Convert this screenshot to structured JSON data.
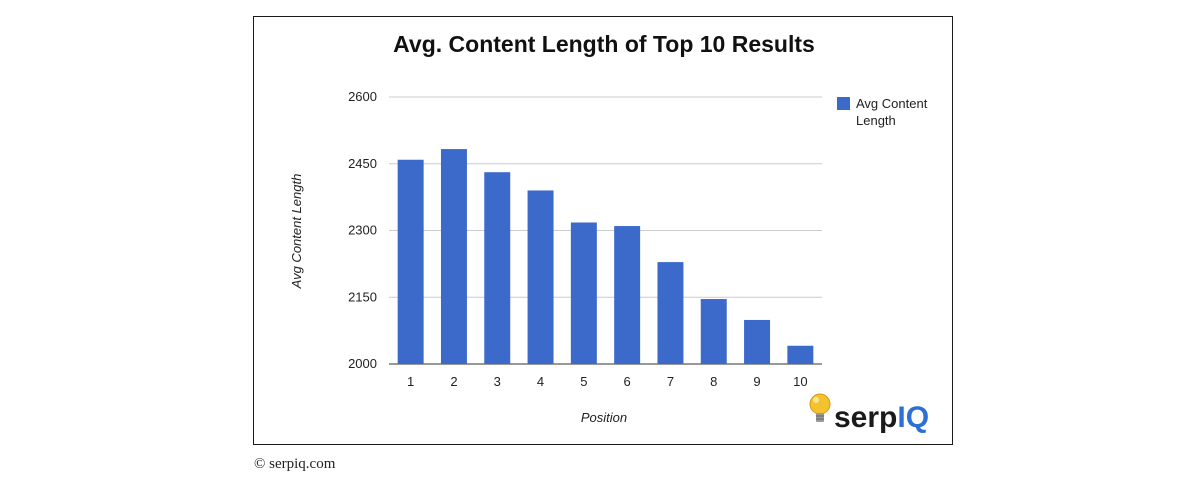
{
  "chart_data": {
    "type": "bar",
    "title": "Avg. Content Length of Top 10 Results",
    "xlabel": "Position",
    "ylabel": "Avg Content Length",
    "categories": [
      "1",
      "2",
      "3",
      "4",
      "5",
      "6",
      "7",
      "8",
      "9",
      "10"
    ],
    "series": [
      {
        "name": "Avg Content Length",
        "values": [
          2459,
          2483,
          2431,
          2390,
          2318,
          2310,
          2229,
          2146,
          2099,
          2041
        ]
      }
    ],
    "ylim": [
      2000,
      2600
    ],
    "yticks": [
      2000,
      2150,
      2300,
      2450,
      2600
    ],
    "grid": true,
    "legend": "right",
    "bar_color": "#3c6acb"
  },
  "logo": {
    "text_dark": "serp",
    "text_accent": "IQ",
    "accent_color": "#2e6fd6",
    "icon": "lightbulb-icon"
  },
  "credit": "© serpiq.com"
}
